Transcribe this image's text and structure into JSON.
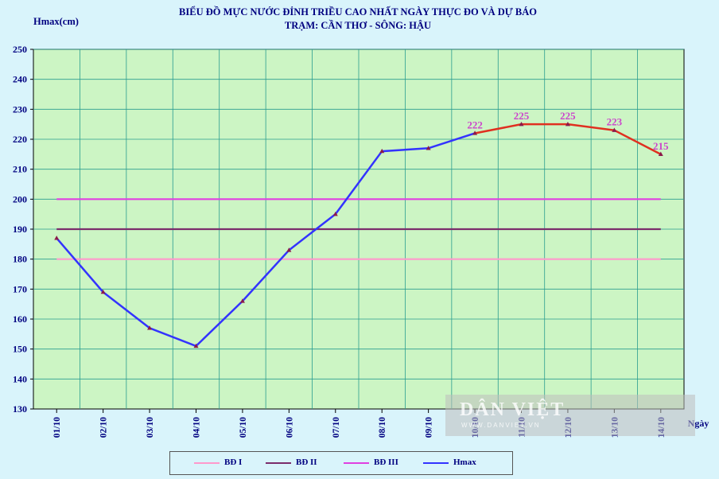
{
  "chart_data": {
    "type": "line",
    "title": "BIỂU ĐỒ MỰC NƯỚC ĐỈNH TRIỀU CAO NHẤT NGÀY THỰC ĐO VÀ DỰ BÁO",
    "subtitle": "TRẠM: CẦN THƠ - SÔNG: HẬU",
    "ylabel": "Hmax(cm)",
    "xlabel": "Ngày",
    "ylim": [
      130,
      250
    ],
    "yticks": [
      130,
      140,
      150,
      160,
      170,
      180,
      190,
      200,
      210,
      220,
      230,
      240,
      250
    ],
    "grid": true,
    "legend_position": "bottom",
    "categories": [
      "01/10",
      "02/10",
      "03/10",
      "04/10",
      "05/10",
      "06/10",
      "07/10",
      "08/10",
      "09/10",
      "10/10",
      "11/10",
      "12/10",
      "13/10",
      "14/10"
    ],
    "series": [
      {
        "name": "BĐ I",
        "color": "#ff99cc",
        "values": [
          180,
          180,
          180,
          180,
          180,
          180,
          180,
          180,
          180,
          180,
          180,
          180,
          180,
          180
        ]
      },
      {
        "name": "BĐ II",
        "color": "#7b2d6b",
        "values": [
          190,
          190,
          190,
          190,
          190,
          190,
          190,
          190,
          190,
          190,
          190,
          190,
          190,
          190
        ]
      },
      {
        "name": "BĐ III",
        "color": "#e040e0",
        "values": [
          200,
          200,
          200,
          200,
          200,
          200,
          200,
          200,
          200,
          200,
          200,
          200,
          200,
          200
        ]
      },
      {
        "name": "Hmax",
        "color": "#3333ff",
        "forecast_color": "#e03020",
        "forecast_start_index": 9,
        "values": [
          187,
          169,
          157,
          151,
          166,
          183,
          195,
          216,
          217,
          222,
          225,
          225,
          223,
          215
        ]
      }
    ],
    "data_labels": {
      "from_index": 9,
      "values": [
        "222",
        "225",
        "225",
        "223",
        "215"
      ],
      "color": "#cc44cc"
    }
  },
  "watermark": {
    "text": "DÂN VIỆT",
    "sub": "WWW.DANVIET.VN"
  }
}
